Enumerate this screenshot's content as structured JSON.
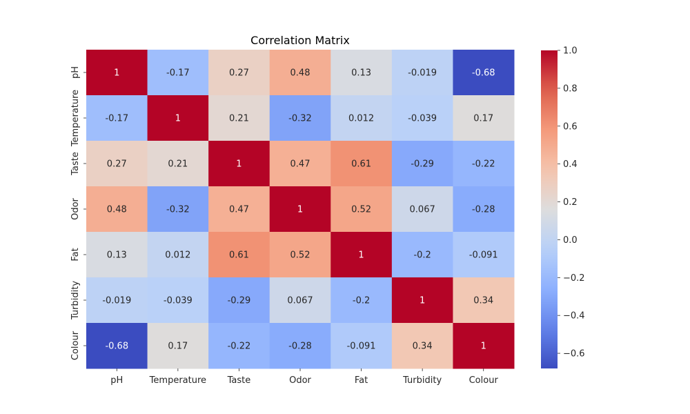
{
  "chart_data": {
    "type": "heatmap",
    "title": "Correlation Matrix",
    "row_labels": [
      "pH",
      "Temperature",
      "Taste",
      "Odor",
      "Fat",
      "Turbidity",
      "Colour"
    ],
    "col_labels": [
      "pH",
      "Temperature",
      "Taste",
      "Odor",
      "Fat",
      "Turbidity",
      "Colour"
    ],
    "values": [
      [
        1,
        -0.17,
        0.27,
        0.48,
        0.13,
        -0.019,
        -0.68
      ],
      [
        -0.17,
        1,
        0.21,
        -0.32,
        0.012,
        -0.039,
        0.17
      ],
      [
        0.27,
        0.21,
        1,
        0.47,
        0.61,
        -0.29,
        -0.22
      ],
      [
        0.48,
        -0.32,
        0.47,
        1,
        0.52,
        0.067,
        -0.28
      ],
      [
        0.13,
        0.012,
        0.61,
        0.52,
        1,
        -0.2,
        -0.091
      ],
      [
        -0.019,
        -0.039,
        -0.29,
        0.067,
        -0.2,
        1,
        0.34
      ],
      [
        -0.68,
        0.17,
        -0.22,
        -0.28,
        -0.091,
        0.34,
        1
      ]
    ],
    "labels": [
      [
        "1",
        "-0.17",
        "0.27",
        "0.48",
        "0.13",
        "-0.019",
        "-0.68"
      ],
      [
        "-0.17",
        "1",
        "0.21",
        "-0.32",
        "0.012",
        "-0.039",
        "0.17"
      ],
      [
        "0.27",
        "0.21",
        "1",
        "0.47",
        "0.61",
        "-0.29",
        "-0.22"
      ],
      [
        "0.48",
        "-0.32",
        "0.47",
        "1",
        "0.52",
        "0.067",
        "-0.28"
      ],
      [
        "0.13",
        "0.012",
        "0.61",
        "0.52",
        "1",
        "-0.2",
        "-0.091"
      ],
      [
        "-0.019",
        "-0.039",
        "-0.29",
        "0.067",
        "-0.2",
        "1",
        "0.34"
      ],
      [
        "-0.68",
        "0.17",
        "-0.22",
        "-0.28",
        "-0.091",
        "0.34",
        "1"
      ]
    ],
    "colormap": "coolwarm",
    "vmin": -0.68,
    "vmax": 1.0,
    "colorbar_ticks": [
      1.0,
      0.8,
      0.6,
      0.4,
      0.2,
      0.0,
      -0.2,
      -0.4,
      -0.6
    ],
    "colorbar_tick_labels": [
      "1.0",
      "0.8",
      "0.6",
      "0.4",
      "0.2",
      "0.0",
      "−0.2",
      "−0.4",
      "−0.6"
    ]
  }
}
